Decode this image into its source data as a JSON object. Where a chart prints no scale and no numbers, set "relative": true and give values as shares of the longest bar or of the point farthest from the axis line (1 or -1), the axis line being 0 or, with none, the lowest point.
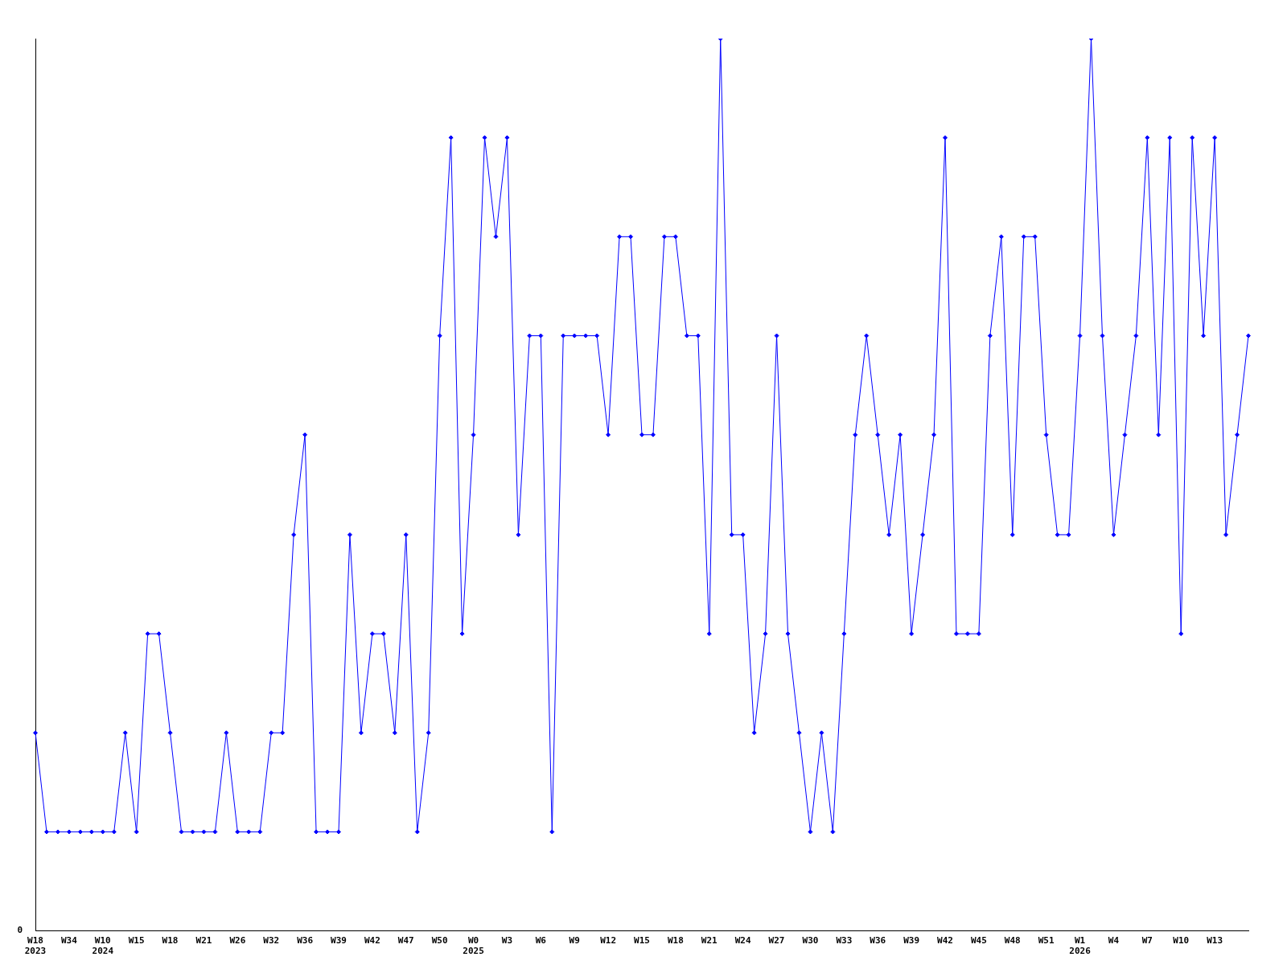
{
  "chart_data": {
    "type": "line",
    "relative": true,
    "marker": "diamond",
    "grid": false,
    "legend": false,
    "annotations": [
      "0"
    ],
    "categories": [
      "W18\n2023",
      null,
      null,
      "W34",
      null,
      null,
      "W10\n2024",
      null,
      null,
      "W15",
      null,
      null,
      "W18",
      null,
      null,
      "W21",
      null,
      null,
      "W26",
      null,
      null,
      "W32",
      null,
      null,
      "W36",
      null,
      null,
      "W39",
      null,
      null,
      "W42",
      null,
      null,
      "W47",
      null,
      null,
      "W50",
      null,
      null,
      "W0\n2025",
      null,
      null,
      "W3",
      null,
      null,
      "W6",
      null,
      null,
      "W9",
      null,
      null,
      "W12",
      null,
      null,
      "W15",
      null,
      null,
      "W18",
      null,
      null,
      "W21",
      null,
      null,
      "W24",
      null,
      null,
      "W27",
      null,
      null,
      "W30",
      null,
      null,
      "W33",
      null,
      null,
      "W36",
      null,
      null,
      "W39",
      null,
      null,
      "W42",
      null,
      null,
      "W45",
      null,
      null,
      "W48",
      null,
      null,
      "W51",
      null,
      null,
      "W1\n2026",
      null,
      null,
      "W4",
      null,
      null,
      "W7",
      null,
      null,
      "W10",
      null,
      null,
      "W13",
      null,
      null,
      null
    ],
    "series": [
      {
        "color": "#0000ff",
        "values": [
          0.222,
          0.111,
          0.111,
          0.111,
          0.111,
          0.111,
          0.111,
          0.111,
          0.222,
          0.111,
          0.333,
          0.333,
          0.222,
          0.111,
          0.111,
          0.111,
          0.111,
          0.222,
          0.111,
          0.111,
          0.111,
          0.222,
          0.222,
          0.444,
          0.556,
          0.111,
          0.111,
          0.111,
          0.444,
          0.222,
          0.333,
          0.333,
          0.222,
          0.444,
          0.111,
          0.222,
          0.667,
          0.889,
          0.333,
          0.556,
          0.889,
          0.778,
          0.889,
          0.444,
          0.667,
          0.667,
          0.111,
          0.667,
          0.667,
          0.667,
          0.667,
          0.556,
          0.778,
          0.778,
          0.556,
          0.556,
          0.778,
          0.778,
          0.667,
          0.667,
          0.333,
          1,
          0.444,
          0.444,
          0.222,
          0.333,
          0.667,
          0.333,
          0.222,
          0.111,
          0.222,
          0.111,
          0.333,
          0.556,
          0.667,
          0.556,
          0.444,
          0.556,
          0.333,
          0.444,
          0.556,
          0.889,
          0.333,
          0.333,
          0.333,
          0.667,
          0.778,
          0.444,
          0.778,
          0.778,
          0.556,
          0.444,
          0.444,
          0.667,
          1,
          0.667,
          0.444,
          0.556,
          0.667,
          0.889,
          0.556,
          0.889,
          0.333,
          0.889,
          0.667,
          0.889,
          0.444,
          0.556,
          0.667
        ]
      }
    ]
  }
}
